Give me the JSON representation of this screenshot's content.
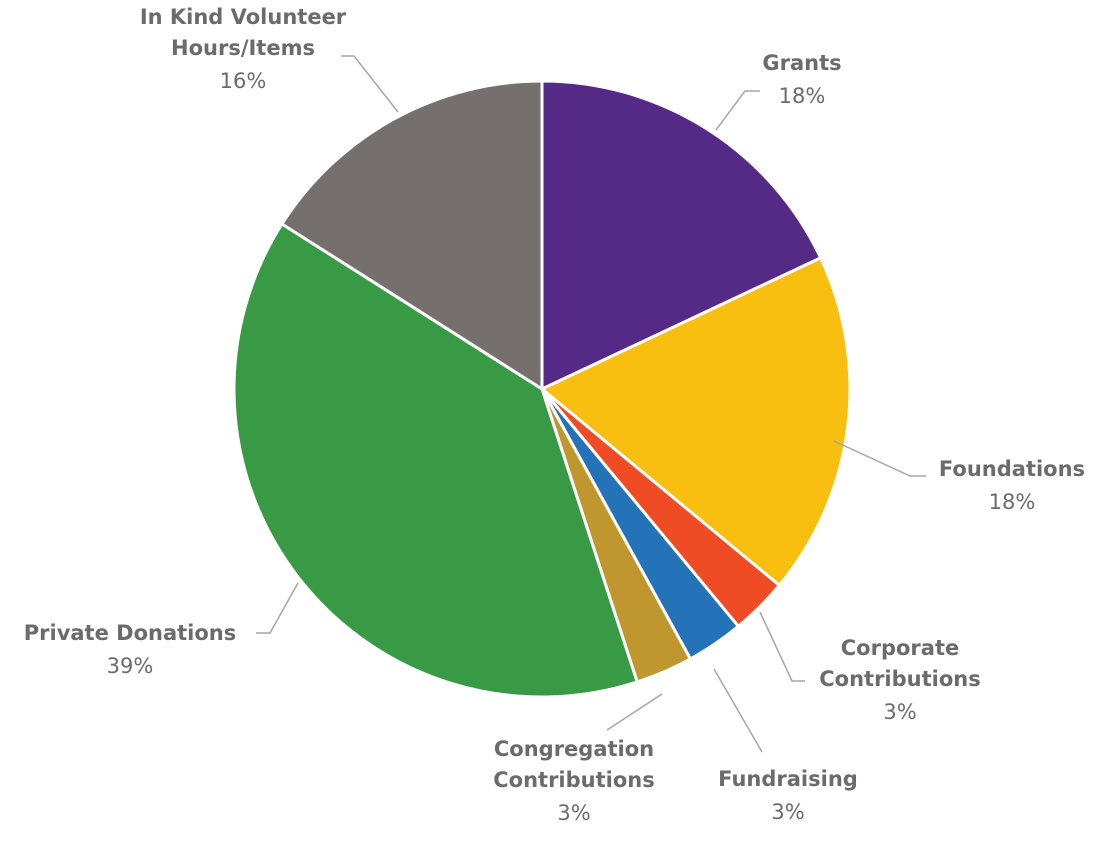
{
  "chart_data": {
    "type": "pie",
    "title": "",
    "slices": [
      {
        "label_lines": [
          "Grants"
        ],
        "value": 18,
        "value_label": "18%",
        "color": "#552a86"
      },
      {
        "label_lines": [
          "Foundations"
        ],
        "value": 18,
        "value_label": "18%",
        "color": "#f9bf10"
      },
      {
        "label_lines": [
          "Corporate",
          "Contributions"
        ],
        "value": 3,
        "value_label": "3%",
        "color": "#ef4c25"
      },
      {
        "label_lines": [
          "Fundraising"
        ],
        "value": 3,
        "value_label": "3%",
        "color": "#2472b8"
      },
      {
        "label_lines": [
          "Congregation",
          "Contributions"
        ],
        "value": 3,
        "value_label": "3%",
        "color": "#c0962e"
      },
      {
        "label_lines": [
          "Private Donations"
        ],
        "value": 39,
        "value_label": "39%",
        "color": "#389a45"
      },
      {
        "label_lines": [
          "In Kind Volunteer",
          "Hours/Items"
        ],
        "value": 16,
        "value_label": "16%",
        "color": "#75706e"
      }
    ],
    "start_angle": "12 o'clock",
    "direction": "clockwise",
    "legend": "none",
    "data_labels": "outside with leader lines"
  }
}
